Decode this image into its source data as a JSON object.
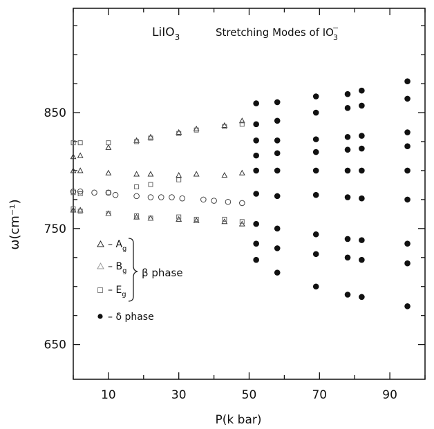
{
  "chart_data": {
    "type": "scatter",
    "title_compound": "LiIO",
    "title_compound_sub": "3",
    "title": "Stretching Modes of IO",
    "title_ion_sub": "3",
    "title_ion_sup": "−",
    "xlabel": "P(k bar)",
    "ylabel": "ω(cm⁻¹)",
    "xlim": [
      0,
      100
    ],
    "ylim": [
      620,
      940
    ],
    "x_ticks": [
      10,
      30,
      50,
      70,
      90
    ],
    "y_ticks": [
      650,
      750,
      850
    ],
    "grid": false,
    "legend": {
      "position": "left-bottom",
      "entries": [
        {
          "marker": "triangle",
          "label": "– A",
          "label_sub": "g"
        },
        {
          "marker": "triangle",
          "label": "– B",
          "label_sub": "g"
        },
        {
          "marker": "square",
          "label": "– E",
          "label_sub": "g"
        },
        {
          "marker": "filled-circle",
          "label": "– δ  phase"
        }
      ],
      "brace_label": "β  phase"
    },
    "series": [
      {
        "marker": "triangle",
        "points": [
          [
            0,
            812
          ],
          [
            0,
            800
          ],
          [
            0,
            766
          ],
          [
            2,
            813
          ],
          [
            2,
            800
          ],
          [
            2,
            766
          ],
          [
            10,
            820
          ],
          [
            10,
            798
          ],
          [
            10,
            763
          ],
          [
            18,
            826
          ],
          [
            18,
            797
          ],
          [
            18,
            760
          ],
          [
            22,
            829
          ],
          [
            22,
            797
          ],
          [
            22,
            759
          ],
          [
            30,
            833
          ],
          [
            30,
            796
          ],
          [
            30,
            758
          ],
          [
            35,
            836
          ],
          [
            35,
            797
          ],
          [
            35,
            757
          ],
          [
            43,
            839
          ],
          [
            43,
            796
          ],
          [
            43,
            756
          ],
          [
            48,
            843
          ],
          [
            48,
            798
          ],
          [
            48,
            754
          ]
        ]
      },
      {
        "marker": "square",
        "points": [
          [
            0,
            824
          ],
          [
            0,
            781
          ],
          [
            0,
            767
          ],
          [
            2,
            824
          ],
          [
            2,
            780
          ],
          [
            2,
            765
          ],
          [
            10,
            824
          ],
          [
            10,
            781
          ],
          [
            10,
            763
          ],
          [
            18,
            825
          ],
          [
            18,
            786
          ],
          [
            18,
            761
          ],
          [
            22,
            828
          ],
          [
            22,
            788
          ],
          [
            22,
            759
          ],
          [
            30,
            832
          ],
          [
            30,
            792
          ],
          [
            30,
            760
          ],
          [
            35,
            835
          ],
          [
            35,
            758
          ],
          [
            43,
            838
          ],
          [
            43,
            758
          ],
          [
            48,
            840
          ],
          [
            48,
            756
          ]
        ]
      },
      {
        "marker": "circle",
        "points": [
          [
            0,
            782
          ],
          [
            2,
            782
          ],
          [
            6,
            781
          ],
          [
            10,
            781
          ],
          [
            12,
            779
          ],
          [
            18,
            778
          ],
          [
            22,
            777
          ],
          [
            25,
            777
          ],
          [
            28,
            777
          ],
          [
            31,
            776
          ],
          [
            37,
            775
          ],
          [
            40,
            774
          ],
          [
            44,
            773
          ],
          [
            48,
            772
          ]
        ]
      },
      {
        "marker": "filled-circle",
        "points": [
          [
            52,
            858
          ],
          [
            52,
            840
          ],
          [
            52,
            826
          ],
          [
            52,
            813
          ],
          [
            52,
            800
          ],
          [
            52,
            780
          ],
          [
            52,
            754
          ],
          [
            52,
            737
          ],
          [
            52,
            723
          ],
          [
            58,
            859
          ],
          [
            58,
            843
          ],
          [
            58,
            826
          ],
          [
            58,
            815
          ],
          [
            58,
            800
          ],
          [
            58,
            778
          ],
          [
            58,
            750
          ],
          [
            58,
            733
          ],
          [
            58,
            712
          ],
          [
            69,
            864
          ],
          [
            69,
            850
          ],
          [
            69,
            827
          ],
          [
            69,
            816
          ],
          [
            69,
            800
          ],
          [
            69,
            779
          ],
          [
            69,
            745
          ],
          [
            69,
            728
          ],
          [
            69,
            700
          ],
          [
            78,
            866
          ],
          [
            78,
            854
          ],
          [
            78,
            829
          ],
          [
            78,
            818
          ],
          [
            78,
            800
          ],
          [
            78,
            777
          ],
          [
            78,
            741
          ],
          [
            78,
            725
          ],
          [
            78,
            693
          ],
          [
            82,
            869
          ],
          [
            82,
            856
          ],
          [
            82,
            830
          ],
          [
            82,
            819
          ],
          [
            82,
            800
          ],
          [
            82,
            776
          ],
          [
            82,
            740
          ],
          [
            82,
            723
          ],
          [
            82,
            691
          ],
          [
            95,
            877
          ],
          [
            95,
            862
          ],
          [
            95,
            833
          ],
          [
            95,
            821
          ],
          [
            95,
            800
          ],
          [
            95,
            775
          ],
          [
            95,
            737
          ],
          [
            95,
            720
          ],
          [
            95,
            683
          ]
        ]
      }
    ]
  }
}
